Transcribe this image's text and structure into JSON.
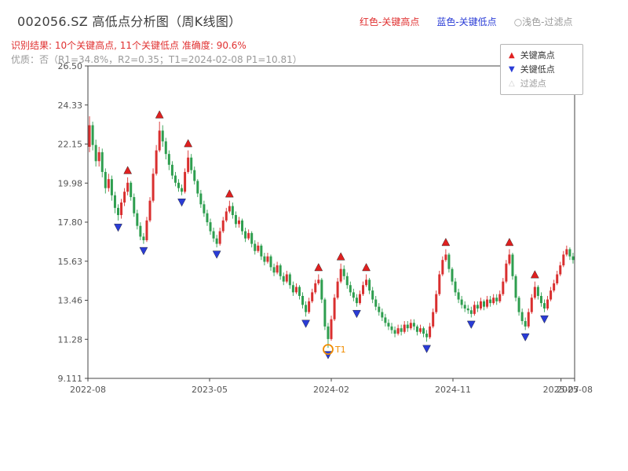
{
  "header": {
    "title": "002056.SZ 高低点分析图（周K线图）",
    "legend_high": "红色-关键高点",
    "legend_low": "蓝色-关键低点",
    "legend_filtered": "○浅色-过滤点",
    "result_line": "识别结果: 10个关键高点, 11个关键低点  准确度: 90.6%",
    "quality_line": "优质：否（R1=34.8%，R2=0.35；T1=2024-02-08 P1=10.81）"
  },
  "legend_box": {
    "items": [
      {
        "label": "关键高点",
        "marker": "up-triangle"
      },
      {
        "label": "关键低点",
        "marker": "down-triangle"
      },
      {
        "label": "过滤点",
        "marker": "up-triangle-outline"
      }
    ]
  },
  "chart_data": {
    "type": "candlestick",
    "title": "002056.SZ 高低点分析图（周K线图）",
    "ylim": [
      9.111,
      26.5
    ],
    "y_ticks": [
      "26.50",
      "24.33",
      "22.15",
      "19.98",
      "17.80",
      "15.63",
      "13.46",
      "11.28",
      "9.111"
    ],
    "x_ticks": [
      {
        "label": "2022-08",
        "pos": 0
      },
      {
        "label": "2023-05",
        "pos": 0.25
      },
      {
        "label": "2024-02",
        "pos": 0.5
      },
      {
        "label": "2024-11",
        "pos": 0.75
      },
      {
        "label": "2025-07",
        "pos": 0.972
      },
      {
        "label": "2025-08",
        "pos": 1.0
      }
    ],
    "colors": {
      "up": "#d92f2f",
      "down": "#2e9e4f",
      "high_marker": "#e02020",
      "low_marker": "#2a3cd6",
      "filtered_marker": "#cccccc",
      "t1": "#f08c00",
      "text_red": "#e03131",
      "text_blue": "#2a3cd6",
      "text_gray": "#9a9a9a",
      "legend_gray": "#9a9a9a"
    },
    "candles": [
      [
        22.0,
        23.7,
        21.7,
        23.2
      ],
      [
        23.2,
        23.4,
        21.8,
        22.1
      ],
      [
        22.1,
        22.4,
        20.9,
        21.2
      ],
      [
        21.2,
        22.0,
        20.9,
        21.7
      ],
      [
        21.7,
        21.9,
        20.3,
        20.6
      ],
      [
        20.6,
        20.8,
        19.4,
        19.7
      ],
      [
        19.7,
        20.5,
        19.5,
        20.2
      ],
      [
        20.2,
        20.4,
        19.0,
        19.3
      ],
      [
        19.3,
        19.5,
        18.3,
        18.6
      ],
      [
        18.6,
        18.8,
        17.9,
        18.2
      ],
      [
        18.2,
        19.1,
        18.0,
        18.9
      ],
      [
        18.9,
        19.7,
        18.7,
        19.5
      ],
      [
        19.5,
        20.3,
        19.3,
        20.0
      ],
      [
        20.0,
        20.1,
        19.0,
        19.2
      ],
      [
        19.2,
        19.4,
        18.1,
        18.3
      ],
      [
        18.3,
        18.5,
        17.4,
        17.6
      ],
      [
        17.6,
        17.8,
        16.8,
        17.0
      ],
      [
        17.0,
        17.2,
        16.6,
        16.8
      ],
      [
        16.8,
        18.1,
        16.7,
        17.9
      ],
      [
        17.9,
        19.2,
        17.8,
        19.0
      ],
      [
        19.0,
        20.8,
        18.9,
        20.5
      ],
      [
        20.5,
        22.1,
        20.4,
        21.8
      ],
      [
        21.8,
        23.4,
        21.7,
        22.9
      ],
      [
        22.9,
        23.2,
        22.0,
        22.3
      ],
      [
        22.3,
        22.5,
        21.3,
        21.6
      ],
      [
        21.6,
        21.8,
        20.7,
        21.0
      ],
      [
        21.0,
        21.2,
        20.2,
        20.4
      ],
      [
        20.4,
        20.6,
        19.8,
        20.0
      ],
      [
        20.0,
        20.2,
        19.5,
        19.7
      ],
      [
        19.7,
        19.9,
        19.3,
        19.5
      ],
      [
        19.5,
        20.8,
        19.4,
        20.6
      ],
      [
        20.6,
        21.8,
        20.5,
        21.4
      ],
      [
        21.4,
        21.6,
        20.5,
        20.7
      ],
      [
        20.7,
        20.9,
        19.9,
        20.1
      ],
      [
        20.1,
        20.2,
        19.2,
        19.4
      ],
      [
        19.4,
        19.6,
        18.6,
        18.8
      ],
      [
        18.8,
        19.0,
        18.1,
        18.3
      ],
      [
        18.3,
        18.5,
        17.6,
        17.8
      ],
      [
        17.8,
        18.0,
        17.1,
        17.3
      ],
      [
        17.3,
        17.5,
        16.7,
        16.9
      ],
      [
        16.9,
        17.1,
        16.4,
        16.6
      ],
      [
        16.6,
        17.5,
        16.5,
        17.3
      ],
      [
        17.3,
        18.1,
        17.2,
        17.9
      ],
      [
        17.9,
        18.6,
        17.8,
        18.4
      ],
      [
        18.4,
        19.0,
        18.3,
        18.7
      ],
      [
        18.7,
        18.9,
        18.0,
        18.2
      ],
      [
        18.2,
        18.4,
        17.5,
        17.7
      ],
      [
        17.7,
        18.1,
        17.5,
        17.9
      ],
      [
        17.9,
        18.0,
        17.1,
        17.3
      ],
      [
        17.3,
        17.5,
        16.7,
        16.9
      ],
      [
        16.9,
        17.4,
        16.8,
        17.2
      ],
      [
        17.2,
        17.3,
        16.4,
        16.6
      ],
      [
        16.6,
        16.8,
        16.0,
        16.2
      ],
      [
        16.2,
        16.7,
        16.1,
        16.5
      ],
      [
        16.5,
        16.6,
        15.7,
        15.9
      ],
      [
        15.9,
        16.1,
        15.4,
        15.6
      ],
      [
        15.6,
        16.1,
        15.5,
        15.9
      ],
      [
        15.9,
        16.0,
        15.1,
        15.3
      ],
      [
        15.3,
        15.5,
        14.8,
        15.0
      ],
      [
        15.0,
        15.6,
        14.9,
        15.4
      ],
      [
        15.4,
        15.5,
        14.6,
        14.8
      ],
      [
        14.8,
        15.0,
        14.3,
        14.5
      ],
      [
        14.5,
        15.1,
        14.4,
        14.9
      ],
      [
        14.9,
        15.0,
        14.1,
        14.3
      ],
      [
        14.3,
        14.5,
        13.7,
        13.9
      ],
      [
        13.9,
        14.4,
        13.8,
        14.2
      ],
      [
        14.2,
        14.3,
        13.5,
        13.7
      ],
      [
        13.7,
        13.9,
        13.0,
        13.2
      ],
      [
        13.2,
        13.4,
        12.55,
        12.8
      ],
      [
        12.8,
        13.6,
        12.7,
        13.4
      ],
      [
        13.4,
        14.1,
        13.3,
        13.9
      ],
      [
        13.9,
        14.6,
        13.8,
        14.4
      ],
      [
        14.4,
        14.9,
        14.3,
        14.6
      ],
      [
        14.6,
        14.7,
        13.3,
        13.5
      ],
      [
        13.5,
        13.6,
        11.8,
        12.0
      ],
      [
        12.0,
        12.2,
        10.81,
        11.3
      ],
      [
        11.3,
        12.6,
        11.2,
        12.4
      ],
      [
        12.4,
        13.8,
        12.3,
        13.6
      ],
      [
        13.6,
        14.7,
        13.5,
        14.5
      ],
      [
        14.5,
        15.5,
        14.4,
        15.2
      ],
      [
        15.2,
        15.4,
        14.6,
        14.8
      ],
      [
        14.8,
        15.0,
        14.1,
        14.3
      ],
      [
        14.3,
        14.5,
        13.7,
        13.9
      ],
      [
        13.9,
        14.1,
        13.4,
        13.6
      ],
      [
        13.6,
        13.8,
        13.1,
        13.3
      ],
      [
        13.3,
        14.0,
        13.2,
        13.8
      ],
      [
        13.8,
        14.5,
        13.7,
        14.3
      ],
      [
        14.3,
        14.9,
        14.2,
        14.6
      ],
      [
        14.6,
        14.7,
        13.8,
        14.0
      ],
      [
        14.0,
        14.2,
        13.3,
        13.5
      ],
      [
        13.5,
        13.7,
        12.9,
        13.1
      ],
      [
        13.1,
        13.3,
        12.6,
        12.8
      ],
      [
        12.8,
        13.0,
        12.3,
        12.5
      ],
      [
        12.5,
        12.7,
        12.0,
        12.2
      ],
      [
        12.2,
        12.4,
        11.8,
        12.0
      ],
      [
        12.0,
        12.2,
        11.6,
        11.8
      ],
      [
        11.8,
        12.0,
        11.4,
        11.6
      ],
      [
        11.6,
        12.1,
        11.5,
        11.9
      ],
      [
        11.9,
        12.1,
        11.5,
        11.7
      ],
      [
        11.7,
        12.3,
        11.6,
        12.1
      ],
      [
        12.1,
        12.3,
        11.7,
        11.9
      ],
      [
        11.9,
        12.4,
        11.8,
        12.2
      ],
      [
        12.2,
        12.4,
        11.8,
        12.0
      ],
      [
        12.0,
        12.1,
        11.5,
        11.7
      ],
      [
        11.7,
        12.1,
        11.6,
        11.9
      ],
      [
        11.9,
        12.0,
        11.4,
        11.6
      ],
      [
        11.6,
        11.8,
        11.15,
        11.4
      ],
      [
        11.4,
        12.2,
        11.3,
        12.0
      ],
      [
        12.0,
        13.0,
        11.9,
        12.8
      ],
      [
        12.8,
        14.0,
        12.7,
        13.8
      ],
      [
        13.8,
        15.1,
        13.7,
        14.9
      ],
      [
        14.9,
        15.9,
        14.8,
        15.7
      ],
      [
        15.7,
        16.3,
        15.6,
        16.0
      ],
      [
        16.0,
        16.1,
        15.0,
        15.2
      ],
      [
        15.2,
        15.3,
        14.3,
        14.5
      ],
      [
        14.5,
        14.7,
        13.7,
        13.9
      ],
      [
        13.9,
        14.1,
        13.3,
        13.5
      ],
      [
        13.5,
        13.7,
        13.0,
        13.2
      ],
      [
        13.2,
        13.4,
        12.8,
        13.0
      ],
      [
        13.0,
        13.2,
        12.7,
        12.9
      ],
      [
        12.9,
        13.1,
        12.5,
        12.7
      ],
      [
        12.7,
        13.4,
        12.6,
        13.2
      ],
      [
        13.2,
        13.4,
        12.8,
        13.0
      ],
      [
        13.0,
        13.6,
        12.9,
        13.4
      ],
      [
        13.4,
        13.5,
        12.9,
        13.1
      ],
      [
        13.1,
        13.7,
        13.0,
        13.5
      ],
      [
        13.5,
        13.7,
        13.1,
        13.3
      ],
      [
        13.3,
        13.8,
        13.2,
        13.6
      ],
      [
        13.6,
        13.8,
        13.2,
        13.4
      ],
      [
        13.4,
        14.0,
        13.3,
        13.8
      ],
      [
        13.8,
        14.7,
        13.7,
        14.5
      ],
      [
        14.5,
        15.7,
        14.4,
        15.5
      ],
      [
        15.5,
        16.3,
        15.4,
        16.0
      ],
      [
        16.0,
        16.1,
        14.6,
        14.8
      ],
      [
        14.8,
        14.9,
        13.4,
        13.6
      ],
      [
        13.6,
        13.7,
        12.6,
        12.8
      ],
      [
        12.8,
        13.0,
        12.1,
        12.3
      ],
      [
        12.3,
        12.5,
        11.8,
        12.0
      ],
      [
        12.0,
        13.0,
        11.9,
        12.8
      ],
      [
        12.8,
        13.8,
        12.7,
        13.6
      ],
      [
        13.6,
        14.5,
        13.5,
        14.2
      ],
      [
        14.2,
        14.3,
        13.5,
        13.7
      ],
      [
        13.7,
        13.9,
        13.1,
        13.3
      ],
      [
        13.3,
        13.5,
        12.8,
        13.0
      ],
      [
        13.0,
        13.7,
        12.9,
        13.5
      ],
      [
        13.5,
        14.2,
        13.4,
        14.0
      ],
      [
        14.0,
        14.6,
        13.9,
        14.4
      ],
      [
        14.4,
        15.1,
        14.3,
        14.9
      ],
      [
        14.9,
        15.6,
        14.8,
        15.4
      ],
      [
        15.4,
        16.2,
        15.3,
        16.0
      ],
      [
        16.0,
        16.5,
        15.9,
        16.3
      ],
      [
        16.3,
        16.4,
        15.7,
        15.9
      ],
      [
        15.9,
        16.1,
        15.5,
        15.7
      ]
    ],
    "key_highs": [
      12,
      22,
      31,
      44,
      72,
      79,
      87,
      112,
      132,
      140
    ],
    "key_lows": [
      9,
      17,
      29,
      40,
      68,
      75,
      84,
      106,
      120,
      137,
      143
    ],
    "t1": {
      "index": 75,
      "price": 10.81,
      "label": "T1"
    }
  }
}
